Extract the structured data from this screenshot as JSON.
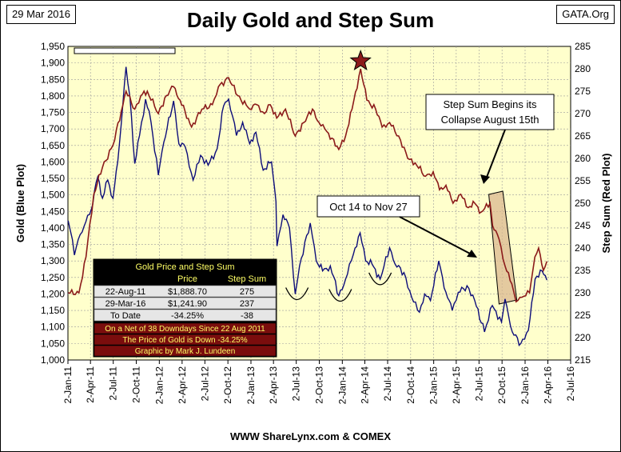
{
  "date_tag": "29 Mar 2016",
  "site_tag": "GATA.Org",
  "title": "Daily Gold and Step Sum",
  "source": "WWW ShareLynx.com & COMEX",
  "colors": {
    "plot_bg": "#ffffcc",
    "gold_line": "#0d0d7a",
    "stepsum_line": "#8b1a1a",
    "star": "#8b1a1a",
    "table_header_bg": "#000000",
    "table_header_text": "#ffff66",
    "table_row_bg": "#e6e6e6",
    "table_note_bg": "#7a0d0d",
    "table_note_text": "#ffff66",
    "box_fill": "#d9b38c"
  },
  "chart_data": {
    "type": "line",
    "title": "Daily Gold and Step Sum",
    "xlabel": "",
    "ylabel": "Gold   (Blue Plot)",
    "y2label": "Step Sum   (Red Plot)",
    "ylim": [
      1000,
      1950
    ],
    "y2lim": [
      215,
      285
    ],
    "xlim": [
      "2011-01-02",
      "2016-07-02"
    ],
    "y_ticks": [
      "1,000",
      "1,050",
      "1,100",
      "1,150",
      "1,200",
      "1,250",
      "1,300",
      "1,350",
      "1,400",
      "1,450",
      "1,500",
      "1,550",
      "1,600",
      "1,650",
      "1,700",
      "1,750",
      "1,800",
      "1,850",
      "1,900",
      "1,950"
    ],
    "y2_ticks": [
      "215",
      "220",
      "225",
      "230",
      "235",
      "240",
      "245",
      "250",
      "255",
      "260",
      "265",
      "270",
      "275",
      "280",
      "285"
    ],
    "x_ticks": [
      {
        "label": "2-Jan-11",
        "date": "2011-01-02"
      },
      {
        "label": "2-Apr-11",
        "date": "2011-04-02"
      },
      {
        "label": "2-Jul-11",
        "date": "2011-07-02"
      },
      {
        "label": "2-Oct-11",
        "date": "2011-10-02"
      },
      {
        "label": "2-Jan-12",
        "date": "2012-01-02"
      },
      {
        "label": "2-Apr-12",
        "date": "2012-04-02"
      },
      {
        "label": "2-Jul-12",
        "date": "2012-07-02"
      },
      {
        "label": "2-Oct-12",
        "date": "2012-10-02"
      },
      {
        "label": "2-Jan-13",
        "date": "2013-01-02"
      },
      {
        "label": "2-Apr-13",
        "date": "2013-04-02"
      },
      {
        "label": "2-Jul-13",
        "date": "2013-07-02"
      },
      {
        "label": "2-Oct-13",
        "date": "2013-10-02"
      },
      {
        "label": "2-Jan-14",
        "date": "2014-01-02"
      },
      {
        "label": "2-Apr-14",
        "date": "2014-04-02"
      },
      {
        "label": "2-Jul-14",
        "date": "2014-07-02"
      },
      {
        "label": "2-Oct-14",
        "date": "2014-10-02"
      },
      {
        "label": "2-Jan-15",
        "date": "2015-01-02"
      },
      {
        "label": "2-Apr-15",
        "date": "2015-04-02"
      },
      {
        "label": "2-Jul-15",
        "date": "2015-07-02"
      },
      {
        "label": "2-Oct-15",
        "date": "2015-10-02"
      },
      {
        "label": "2-Jan-16",
        "date": "2016-01-02"
      },
      {
        "label": "2-Apr-16",
        "date": "2016-04-02"
      },
      {
        "label": "2-Jul-16",
        "date": "2016-07-02"
      }
    ],
    "grid": true,
    "series": [
      {
        "axis": "left",
        "points": [
          [
            "2011-01-03",
            1422
          ],
          [
            "2011-01-20",
            1365
          ],
          [
            "2011-01-28",
            1318
          ],
          [
            "2011-02-20",
            1380
          ],
          [
            "2011-03-15",
            1420
          ],
          [
            "2011-04-05",
            1455
          ],
          [
            "2011-05-01",
            1555
          ],
          [
            "2011-05-20",
            1490
          ],
          [
            "2011-06-10",
            1545
          ],
          [
            "2011-07-01",
            1490
          ],
          [
            "2011-07-20",
            1600
          ],
          [
            "2011-08-10",
            1780
          ],
          [
            "2011-08-22",
            1888
          ],
          [
            "2011-09-06",
            1800
          ],
          [
            "2011-09-26",
            1595
          ],
          [
            "2011-10-15",
            1680
          ],
          [
            "2011-11-08",
            1790
          ],
          [
            "2011-11-30",
            1720
          ],
          [
            "2011-12-29",
            1560
          ],
          [
            "2012-01-20",
            1660
          ],
          [
            "2012-02-28",
            1785
          ],
          [
            "2012-03-20",
            1655
          ],
          [
            "2012-04-15",
            1645
          ],
          [
            "2012-05-16",
            1545
          ],
          [
            "2012-06-15",
            1620
          ],
          [
            "2012-07-15",
            1590
          ],
          [
            "2012-08-20",
            1640
          ],
          [
            "2012-09-15",
            1770
          ],
          [
            "2012-10-05",
            1790
          ],
          [
            "2012-11-05",
            1680
          ],
          [
            "2012-11-30",
            1720
          ],
          [
            "2012-12-28",
            1655
          ],
          [
            "2013-01-22",
            1690
          ],
          [
            "2013-02-20",
            1575
          ],
          [
            "2013-03-25",
            1600
          ],
          [
            "2013-04-12",
            1480
          ],
          [
            "2013-04-16",
            1345
          ],
          [
            "2013-05-10",
            1440
          ],
          [
            "2013-06-05",
            1400
          ],
          [
            "2013-06-28",
            1200
          ],
          [
            "2013-07-15",
            1285
          ],
          [
            "2013-08-27",
            1415
          ],
          [
            "2013-09-20",
            1300
          ],
          [
            "2013-10-15",
            1270
          ],
          [
            "2013-11-15",
            1285
          ],
          [
            "2013-12-19",
            1195
          ],
          [
            "2014-01-15",
            1245
          ],
          [
            "2014-02-15",
            1320
          ],
          [
            "2014-03-14",
            1385
          ],
          [
            "2014-04-05",
            1300
          ],
          [
            "2014-05-01",
            1290
          ],
          [
            "2014-06-02",
            1245
          ],
          [
            "2014-07-10",
            1340
          ],
          [
            "2014-08-01",
            1290
          ],
          [
            "2014-09-05",
            1265
          ],
          [
            "2014-10-06",
            1190
          ],
          [
            "2014-11-06",
            1145
          ],
          [
            "2014-11-27",
            1200
          ],
          [
            "2014-12-20",
            1180
          ],
          [
            "2015-01-22",
            1300
          ],
          [
            "2015-02-20",
            1205
          ],
          [
            "2015-03-17",
            1150
          ],
          [
            "2015-04-10",
            1205
          ],
          [
            "2015-05-15",
            1225
          ],
          [
            "2015-06-15",
            1180
          ],
          [
            "2015-07-24",
            1085
          ],
          [
            "2015-08-24",
            1165
          ],
          [
            "2015-09-30",
            1115
          ],
          [
            "2015-10-14",
            1185
          ],
          [
            "2015-11-12",
            1085
          ],
          [
            "2015-12-16",
            1050
          ],
          [
            "2016-01-15",
            1090
          ],
          [
            "2016-02-11",
            1245
          ],
          [
            "2016-03-10",
            1270
          ],
          [
            "2016-03-29",
            1242
          ]
        ]
      },
      {
        "axis": "right",
        "points": [
          [
            "2011-01-03",
            230
          ],
          [
            "2011-02-15",
            230
          ],
          [
            "2011-03-15",
            238
          ],
          [
            "2011-04-15",
            252
          ],
          [
            "2011-05-20",
            258
          ],
          [
            "2011-07-01",
            263
          ],
          [
            "2011-08-10",
            272
          ],
          [
            "2011-08-22",
            275
          ],
          [
            "2011-09-26",
            271
          ],
          [
            "2011-10-20",
            274
          ],
          [
            "2011-11-15",
            275
          ],
          [
            "2011-12-29",
            270
          ],
          [
            "2012-01-30",
            274
          ],
          [
            "2012-02-28",
            276
          ],
          [
            "2012-03-25",
            273
          ],
          [
            "2012-05-10",
            267
          ],
          [
            "2012-06-20",
            271
          ],
          [
            "2012-08-01",
            272
          ],
          [
            "2012-08-25",
            276
          ],
          [
            "2012-10-05",
            278
          ],
          [
            "2012-11-10",
            274
          ],
          [
            "2012-12-28",
            271
          ],
          [
            "2013-01-25",
            272
          ],
          [
            "2013-02-25",
            270
          ],
          [
            "2013-03-20",
            272
          ],
          [
            "2013-04-15",
            269
          ],
          [
            "2013-05-20",
            271
          ],
          [
            "2013-06-28",
            265
          ],
          [
            "2013-08-01",
            268
          ],
          [
            "2013-09-05",
            271
          ],
          [
            "2013-10-01",
            268
          ],
          [
            "2013-11-01",
            266
          ],
          [
            "2013-12-19",
            262
          ],
          [
            "2014-01-15",
            265
          ],
          [
            "2014-02-10",
            271
          ],
          [
            "2014-03-16",
            280
          ],
          [
            "2014-04-10",
            273
          ],
          [
            "2014-05-15",
            271
          ],
          [
            "2014-06-10",
            267
          ],
          [
            "2014-07-10",
            268
          ],
          [
            "2014-08-15",
            265
          ],
          [
            "2014-09-20",
            260
          ],
          [
            "2014-10-20",
            259
          ],
          [
            "2014-11-30",
            256
          ],
          [
            "2014-12-31",
            257
          ],
          [
            "2015-01-25",
            253
          ],
          [
            "2015-02-20",
            254
          ],
          [
            "2015-03-20",
            250
          ],
          [
            "2015-04-20",
            252
          ],
          [
            "2015-05-20",
            249
          ],
          [
            "2015-06-15",
            250
          ],
          [
            "2015-07-10",
            248
          ],
          [
            "2015-08-15",
            250
          ],
          [
            "2015-08-25",
            245
          ],
          [
            "2015-09-20",
            242
          ],
          [
            "2015-10-14",
            236
          ],
          [
            "2015-11-10",
            232
          ],
          [
            "2015-11-27",
            228
          ],
          [
            "2015-12-20",
            229
          ],
          [
            "2016-01-20",
            230
          ],
          [
            "2016-02-10",
            238
          ],
          [
            "2016-02-25",
            240
          ],
          [
            "2016-03-15",
            235
          ],
          [
            "2016-03-29",
            237
          ]
        ]
      }
    ],
    "annotations": [
      "Step Sum Begins its Collapse August 15th",
      "Oct 14 to Nov 27"
    ],
    "table": {
      "title": "Gold Price and Step Sum",
      "headers": [
        "",
        "Price",
        "Step Sum"
      ],
      "rows": [
        [
          "22-Aug-11",
          "$1,888.70",
          "275"
        ],
        [
          "29-Mar-16",
          "$1,241.90",
          "237"
        ],
        [
          "To Date",
          "-34.25%",
          "-38"
        ]
      ],
      "notes": [
        "On a Net of 38 Downdays Since 22 Aug 2011",
        "The Price of Gold is Down -34.25%",
        "Graphic by Mark J. Lundeen"
      ]
    }
  }
}
